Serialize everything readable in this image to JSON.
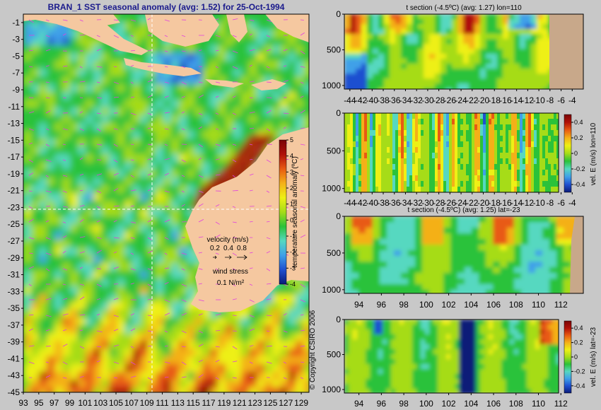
{
  "main_title": "BRAN_1  SST seasonal anomaly (avg: 1.52) for 25-Oct-1994",
  "copyright": "© Copyright CSIRO 2006",
  "palette": [
    "#0a1a78",
    "#1f50d0",
    "#3fa0e8",
    "#56d8c0",
    "#2bc23a",
    "#a6dc18",
    "#eef015",
    "#f4b018",
    "#e85a12",
    "#b01008",
    "#7a0505"
  ],
  "land_color": "#f5c8a0",
  "section_land_color": "#c8a88a",
  "chart_data": [
    {
      "type": "heatmap",
      "title": "BRAN_1  SST seasonal anomaly (avg: 1.52) for 25-Oct-1994",
      "x_ticks": [
        "93",
        "95",
        "97",
        "99",
        "101",
        "103",
        "105",
        "107",
        "109",
        "111",
        "113",
        "115",
        "117",
        "119",
        "121",
        "123",
        "125",
        "127",
        "129"
      ],
      "y_ticks": [
        "-1",
        "-3",
        "-5",
        "-7",
        "-9",
        "-11",
        "-13",
        "-15",
        "-17",
        "-19",
        "-21",
        "-23",
        "-25",
        "-27",
        "-29",
        "-31",
        "-33",
        "-35",
        "-37",
        "-39",
        "-41",
        "-43",
        "-45"
      ],
      "xlim": [
        93,
        130
      ],
      "ylim": [
        -45,
        0
      ],
      "section_lon": 110,
      "section_lat": -23,
      "colorbar": {
        "label": "temperature seasonal anomaly (ºC)",
        "ticks": [
          "5",
          "4",
          "3",
          "2",
          "1",
          "0",
          "-1",
          "-2",
          "-3",
          "-4"
        ],
        "range": [
          -4,
          5
        ]
      },
      "velocity_legend": {
        "title": "velocity (m/s)",
        "values": [
          "0.2",
          "0.4",
          "0.8"
        ]
      },
      "wind_legend": {
        "title": "wind stress",
        "value": "0.1 N/m²"
      }
    },
    {
      "type": "heatmap",
      "title": "t section (-4.5ºC) (avg: 1.27) lon=110",
      "x_ticks": [
        "-44",
        "-42",
        "-40",
        "-38",
        "-36",
        "-34",
        "-32",
        "-30",
        "-28",
        "-26",
        "-24",
        "-22",
        "-20",
        "-18",
        "-16",
        "-14",
        "-12",
        "-10",
        "-8",
        "-6",
        "-4"
      ],
      "y_ticks": [
        "0",
        "500",
        "1000"
      ],
      "xlim": [
        -45,
        -2
      ],
      "ylim": [
        1050,
        0
      ]
    },
    {
      "type": "heatmap",
      "title": "",
      "x_ticks": [
        "-44",
        "-42",
        "-40",
        "-38",
        "-36",
        "-34",
        "-32",
        "-30",
        "-28",
        "-26",
        "-24",
        "-22",
        "-20",
        "-18",
        "-16",
        "-14",
        "-12",
        "-10",
        "-8",
        "-6",
        "-4"
      ],
      "y_ticks": [
        "0",
        "500",
        "1000"
      ],
      "xlim": [
        -45,
        -2
      ],
      "ylim": [
        1050,
        0
      ],
      "colorbar": {
        "label": "vel. E (m/s) lon=110",
        "ticks": [
          "0.4",
          "0.2",
          "0",
          "-0.2",
          "-0.4"
        ],
        "range": [
          -0.5,
          0.5
        ]
      }
    },
    {
      "type": "heatmap",
      "title": "t section (-4.5ºC) (avg: 1.25) lat=-23",
      "x_ticks": [
        "94",
        "96",
        "98",
        "100",
        "102",
        "104",
        "106",
        "108",
        "110",
        "112"
      ],
      "y_ticks": [
        "0",
        "500",
        "1000"
      ],
      "xlim": [
        92.7,
        114
      ],
      "ylim": [
        1050,
        0
      ]
    },
    {
      "type": "heatmap",
      "title": "",
      "x_ticks": [
        "94",
        "96",
        "98",
        "100",
        "102",
        "104",
        "106",
        "108",
        "110",
        "112"
      ],
      "y_ticks": [
        "0",
        "500",
        "1000"
      ],
      "xlim": [
        92.7,
        114
      ],
      "ylim": [
        1050,
        0
      ],
      "colorbar": {
        "label": "vel. E (m/s) lat=-23",
        "ticks": [
          "0.4",
          "0.2",
          "0",
          "-0.2",
          "-0.4"
        ],
        "range": [
          -0.5,
          0.5
        ]
      }
    }
  ]
}
